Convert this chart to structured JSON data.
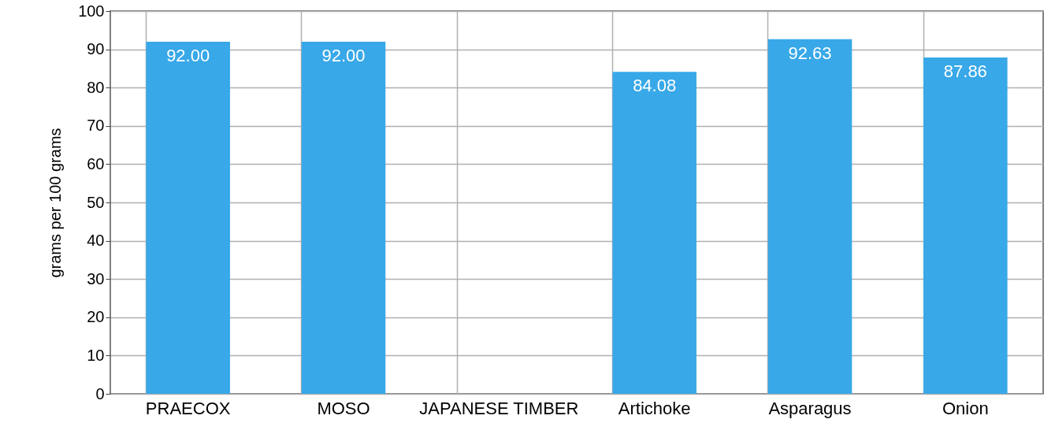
{
  "chart_data": {
    "type": "bar",
    "ylabel": "grams per 100 grams",
    "categories": [
      "PRAECOX",
      "MOSO",
      "JAPANESE TIMBER",
      "Artichoke",
      "Asparagus",
      "Onion"
    ],
    "values": [
      92.0,
      92.0,
      null,
      84.08,
      92.63,
      87.86
    ],
    "value_labels": [
      "92.00",
      "92.00",
      null,
      "84.08",
      "92.63",
      "87.86"
    ],
    "color": "#38a8e8",
    "ylim": [
      0,
      100
    ],
    "yticks": [
      0,
      10,
      20,
      30,
      40,
      50,
      60,
      70,
      80,
      90,
      100
    ],
    "grid": true
  }
}
